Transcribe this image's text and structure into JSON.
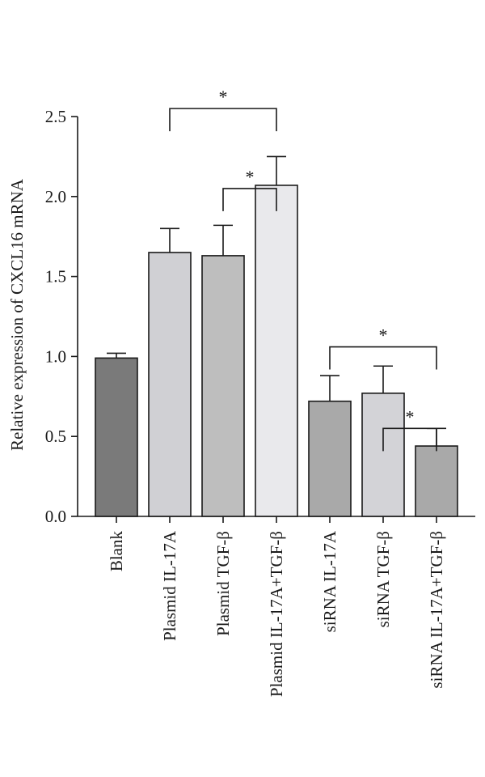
{
  "chart_data": {
    "type": "bar",
    "title": "",
    "xlabel": "",
    "ylabel": "Relative expression of CXCL16 mRNA",
    "ylim": [
      0,
      2.5
    ],
    "yticks": [
      "0.0",
      "0.5",
      "1.0",
      "1.5",
      "2.0",
      "2.5"
    ],
    "grid": false,
    "categories": [
      "Blank",
      "Plasmid IL-17A",
      "Plasmid TGF-β",
      "Plasmid IL-17A+TGF-β",
      "siRNA IL-17A",
      "siRNA TGF-β",
      "siRNA IL-17A+TGF-β"
    ],
    "values": [
      0.99,
      1.65,
      1.63,
      2.07,
      0.72,
      0.77,
      0.44
    ],
    "errors": [
      0.03,
      0.15,
      0.19,
      0.18,
      0.16,
      0.17,
      0.11
    ],
    "bar_colors": [
      "#7a7a7a",
      "#d0d0d4",
      "#bebebe",
      "#e9e9ec",
      "#a9a9a9",
      "#d3d3d7",
      "#a9a9a9"
    ],
    "significance": [
      {
        "from": 1,
        "to": 3,
        "level": 2.55,
        "label": "*"
      },
      {
        "from": 2,
        "to": 3,
        "level": 2.05,
        "label": "*"
      },
      {
        "from": 4,
        "to": 6,
        "level": 1.06,
        "label": "*"
      },
      {
        "from": 5,
        "to": 6,
        "level": 0.55,
        "label": "*"
      }
    ]
  }
}
